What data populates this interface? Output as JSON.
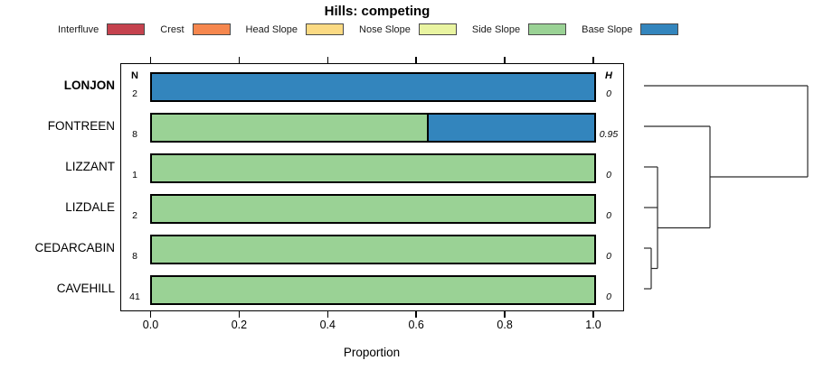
{
  "title": "Hills: competing",
  "legend": {
    "items": [
      {
        "label": "Interfluve",
        "color": "#C5424E"
      },
      {
        "label": "Crest",
        "color": "#F6874E"
      },
      {
        "label": "Head Slope",
        "color": "#FBDA83"
      },
      {
        "label": "Nose Slope",
        "color": "#E9F4A1"
      },
      {
        "label": "Side Slope",
        "color": "#9AD295"
      },
      {
        "label": "Base Slope",
        "color": "#3385BD"
      }
    ]
  },
  "chart_data": {
    "type": "bar",
    "orientation": "horizontal-stacked",
    "title": "Hills: competing",
    "xlabel": "Proportion",
    "xlim": [
      0.0,
      1.0
    ],
    "xtick_values": [
      0.0,
      0.2,
      0.4,
      0.6,
      0.8,
      1.0
    ],
    "xtick_labels": [
      "0.0",
      "0.2",
      "0.4",
      "0.6",
      "0.8",
      "1.0"
    ],
    "n_header": "N",
    "h_header": "H",
    "categories": [
      "LONJON",
      "FONTREEN",
      "LIZZANT",
      "LIZDALE",
      "CEDARCABIN",
      "CAVEHILL"
    ],
    "rows": [
      {
        "label": "LONJON",
        "bold": true,
        "n": "2",
        "h": "0",
        "segments": [
          {
            "name": "Base Slope",
            "value": 1.0
          }
        ]
      },
      {
        "label": "FONTREEN",
        "bold": false,
        "n": "8",
        "h": "0.95",
        "segments": [
          {
            "name": "Side Slope",
            "value": 0.625
          },
          {
            "name": "Base Slope",
            "value": 0.375
          }
        ]
      },
      {
        "label": "LIZZANT",
        "bold": false,
        "n": "1",
        "h": "0",
        "segments": [
          {
            "name": "Side Slope",
            "value": 1.0
          }
        ]
      },
      {
        "label": "LIZDALE",
        "bold": false,
        "n": "2",
        "h": "0",
        "segments": [
          {
            "name": "Side Slope",
            "value": 1.0
          }
        ]
      },
      {
        "label": "CEDARCABIN",
        "bold": false,
        "n": "8",
        "h": "0",
        "segments": [
          {
            "name": "Side Slope",
            "value": 1.0
          }
        ]
      },
      {
        "label": "CAVEHILL",
        "bold": false,
        "n": "41",
        "h": "0",
        "segments": [
          {
            "name": "Side Slope",
            "value": 1.0
          }
        ]
      }
    ],
    "colors": {
      "Interfluve": "#C5424E",
      "Crest": "#F6874E",
      "Head Slope": "#FBDA83",
      "Nose Slope": "#E9F4A1",
      "Side Slope": "#9AD295",
      "Base Slope": "#3385BD"
    },
    "dendrogram": {
      "description": "cluster tree on right margin; segments in svg-local px [x1,y1,x2,y2]",
      "segments": [
        [
          12,
          25,
          193,
          25
        ],
        [
          193,
          25,
          193,
          126
        ],
        [
          85,
          126,
          193,
          126
        ],
        [
          12,
          70,
          85,
          70
        ],
        [
          85,
          70,
          85,
          182.5
        ],
        [
          27,
          182.5,
          85,
          182.5
        ],
        [
          12,
          115,
          27,
          115
        ],
        [
          12,
          160,
          27,
          160
        ],
        [
          27,
          115,
          27,
          227.5
        ],
        [
          20,
          227.5,
          27,
          227.5
        ],
        [
          12,
          205,
          20,
          205
        ],
        [
          12,
          250,
          20,
          250
        ],
        [
          20,
          205,
          20,
          250
        ]
      ]
    }
  }
}
